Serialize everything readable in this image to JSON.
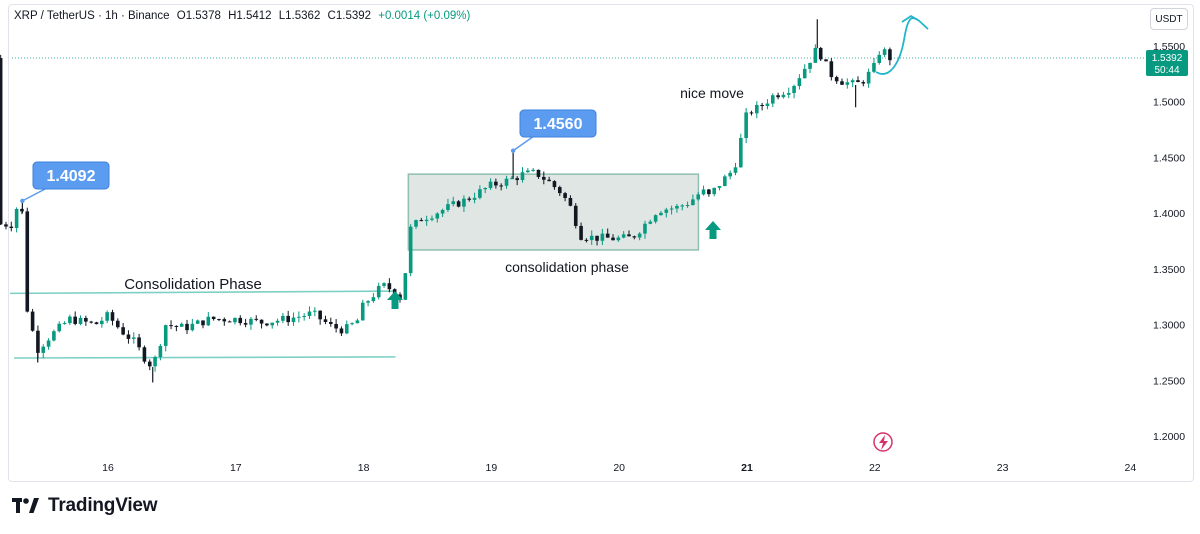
{
  "header": {
    "symbol": "XRP / TetherUS · 1h · Binance",
    "open": "O1.5378",
    "high": "H1.5412",
    "low": "L1.5362",
    "close": "C1.5392",
    "change": "+0.0014 (+0.09%)"
  },
  "currency_button": "USDT",
  "brand": "TradingView",
  "icons": {
    "logo": "tradingview-logo-icon",
    "bolt": "lightning-bolt-icon",
    "arrow": "up-arrow-icon"
  },
  "colors": {
    "up": "#089981",
    "down": "#131722",
    "zone": "#8fbfb0",
    "zone_fill": "#dfe6e3",
    "callout": "#5b9cf0",
    "price_tag": "#089981",
    "projection": "#22b5c9",
    "line": "#7fd0c4"
  },
  "chart_data": {
    "type": "candlestick",
    "y_axis": {
      "ticks": [
        "1.5500",
        "1.5000",
        "1.4500",
        "1.4000",
        "1.3500",
        "1.3000",
        "1.2500",
        "1.2000"
      ],
      "range": [
        1.19,
        1.575
      ]
    },
    "x_axis": {
      "ticks": [
        "16",
        "17",
        "18",
        "19",
        "20",
        "21",
        "22",
        "23",
        "24"
      ]
    },
    "last_price": "1.5392",
    "countdown": "50:44",
    "annotations": {
      "callout_low": "1.4092",
      "callout_high": "1.4560",
      "label_consolidation_1": "Consolidation Phase",
      "label_consolidation_2": "consolidation phase",
      "label_move": "nice move"
    },
    "path_points": [
      [
        15.28,
        1.405
      ],
      [
        15.33,
        1.4
      ],
      [
        15.37,
        1.31
      ],
      [
        15.45,
        1.278
      ],
      [
        15.55,
        1.29
      ],
      [
        15.7,
        1.305
      ],
      [
        15.9,
        1.3
      ],
      [
        16.0,
        1.308
      ],
      [
        16.1,
        1.295
      ],
      [
        16.2,
        1.285
      ],
      [
        16.3,
        1.268
      ],
      [
        16.35,
        1.262
      ],
      [
        16.45,
        1.3
      ],
      [
        16.6,
        1.297
      ],
      [
        16.8,
        1.305
      ],
      [
        17.0,
        1.305
      ],
      [
        17.2,
        1.302
      ],
      [
        17.4,
        1.305
      ],
      [
        17.6,
        1.31
      ],
      [
        17.75,
        1.298
      ],
      [
        17.85,
        1.295
      ],
      [
        17.95,
        1.303
      ],
      [
        18.0,
        1.318
      ],
      [
        18.15,
        1.335
      ],
      [
        18.25,
        1.33
      ],
      [
        18.28,
        1.322
      ],
      [
        18.32,
        1.34
      ],
      [
        18.36,
        1.385
      ],
      [
        18.45,
        1.395
      ],
      [
        18.6,
        1.402
      ],
      [
        18.8,
        1.412
      ],
      [
        19.0,
        1.425
      ],
      [
        19.15,
        1.43
      ],
      [
        19.25,
        1.435
      ],
      [
        19.35,
        1.436
      ],
      [
        19.45,
        1.428
      ],
      [
        19.55,
        1.418
      ],
      [
        19.62,
        1.405
      ],
      [
        19.7,
        1.38
      ],
      [
        19.8,
        1.378
      ],
      [
        20.0,
        1.377
      ],
      [
        20.1,
        1.378
      ],
      [
        20.2,
        1.39
      ],
      [
        20.3,
        1.403
      ],
      [
        20.45,
        1.405
      ],
      [
        20.55,
        1.41
      ],
      [
        20.65,
        1.42
      ],
      [
        20.7,
        1.415
      ],
      [
        20.8,
        1.428
      ],
      [
        20.9,
        1.44
      ],
      [
        21.0,
        1.49
      ],
      [
        21.1,
        1.495
      ],
      [
        21.2,
        1.505
      ],
      [
        21.35,
        1.513
      ],
      [
        21.45,
        1.53
      ],
      [
        21.55,
        1.548
      ],
      [
        21.65,
        1.525
      ],
      [
        21.75,
        1.518
      ],
      [
        21.85,
        1.515
      ],
      [
        21.92,
        1.52
      ],
      [
        22.0,
        1.532
      ],
      [
        22.05,
        1.55
      ],
      [
        22.1,
        1.54
      ],
      [
        22.12,
        1.5392
      ]
    ],
    "spikes": [
      {
        "x": 15.33,
        "y": 1.411
      },
      {
        "x": 15.45,
        "y": 1.266
      },
      {
        "x": 16.35,
        "y": 1.248
      },
      {
        "x": 19.17,
        "y": 1.456
      },
      {
        "x": 21.55,
        "y": 1.574
      },
      {
        "x": 21.85,
        "y": 1.495
      }
    ]
  }
}
